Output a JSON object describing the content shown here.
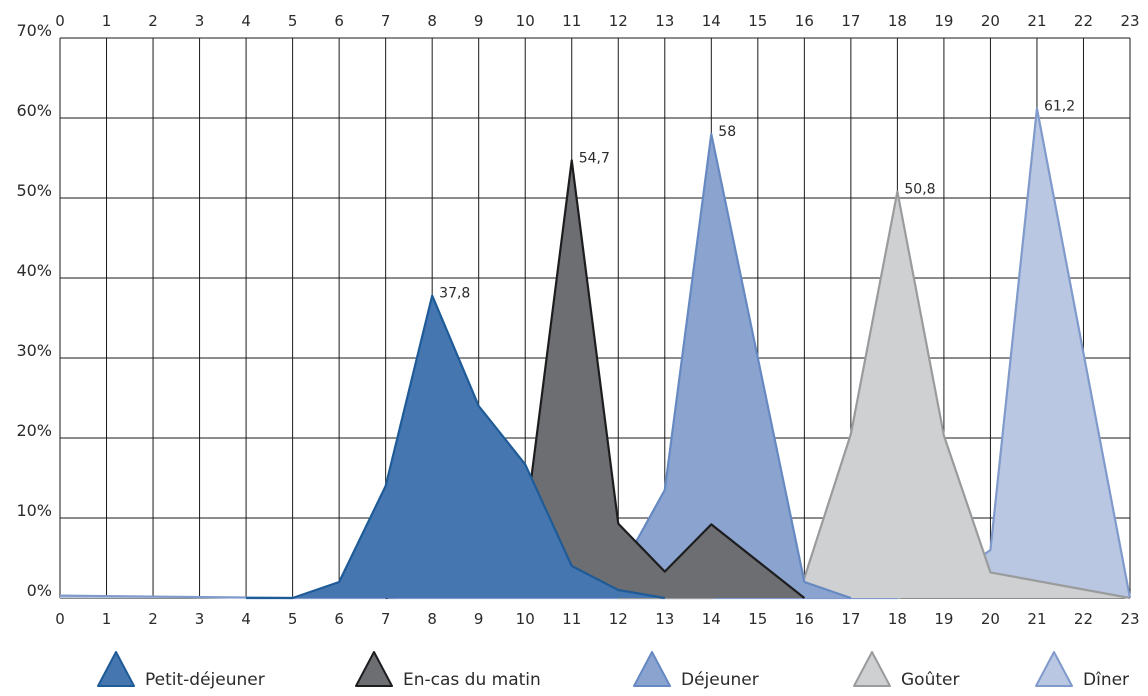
{
  "chart_data": {
    "type": "area",
    "title": "",
    "xlabel": "",
    "ylabel": "",
    "x": [
      0,
      1,
      2,
      3,
      4,
      5,
      6,
      7,
      8,
      9,
      10,
      11,
      12,
      13,
      14,
      15,
      16,
      17,
      18,
      19,
      20,
      21,
      22,
      23
    ],
    "x_tick_labels": [
      "0",
      "1",
      "2",
      "3",
      "4",
      "5",
      "6",
      "7",
      "8",
      "9",
      "10",
      "11",
      "12",
      "13",
      "14",
      "15",
      "16",
      "17",
      "18",
      "19",
      "20",
      "21",
      "22",
      "23"
    ],
    "xlim": [
      0,
      23
    ],
    "ylim": [
      0,
      70
    ],
    "y_ticks": [
      0,
      10,
      20,
      30,
      40,
      50,
      60,
      70
    ],
    "y_tick_labels": [
      "0%",
      "10%",
      "20%",
      "30%",
      "40%",
      "50%",
      "60%",
      "70%"
    ],
    "grid": true,
    "legend_position": "bottom",
    "series": [
      {
        "name": "Dîner",
        "color": "#b9c7e2",
        "stroke": "#7f9acb",
        "points": [
          [
            0,
            0.3
          ],
          [
            5,
            0
          ],
          [
            6,
            0
          ],
          [
            18,
            0
          ],
          [
            19,
            2
          ],
          [
            20,
            6
          ],
          [
            21,
            61.2
          ],
          [
            23,
            0
          ]
        ]
      },
      {
        "name": "Goûter",
        "color": "#cfd0d2",
        "stroke": "#9a9b9d",
        "points": [
          [
            12,
            0
          ],
          [
            14,
            0
          ],
          [
            16,
            2.5
          ],
          [
            17,
            20.5
          ],
          [
            18,
            50.8
          ],
          [
            19,
            20.3
          ],
          [
            20,
            3.2
          ],
          [
            23,
            0
          ]
        ]
      },
      {
        "name": "Déjeuner",
        "color": "#8aa4cf",
        "stroke": "#6689c2",
        "points": [
          [
            7,
            0
          ],
          [
            12,
            3
          ],
          [
            13,
            13.5
          ],
          [
            14,
            58
          ],
          [
            16,
            2
          ],
          [
            17,
            0
          ]
        ]
      },
      {
        "name": "En-cas du matin",
        "color": "#6d6e71",
        "stroke": "#1d1d1f",
        "points": [
          [
            7,
            0
          ],
          [
            10,
            9
          ],
          [
            11,
            54.7
          ],
          [
            12,
            9.3
          ],
          [
            13,
            3.3
          ],
          [
            14,
            9.2
          ],
          [
            16,
            0
          ]
        ]
      },
      {
        "name": "Petit-déjeuner",
        "color": "#4576b0",
        "stroke": "#1f5b98",
        "points": [
          [
            4,
            0
          ],
          [
            5,
            0
          ],
          [
            6,
            2
          ],
          [
            7,
            14
          ],
          [
            8,
            37.8
          ],
          [
            9,
            24
          ],
          [
            10,
            16.7
          ],
          [
            11,
            4
          ],
          [
            12,
            1
          ],
          [
            13,
            0
          ]
        ]
      }
    ],
    "annotations": [
      {
        "x": 8,
        "y": 37.8,
        "text": "37,8"
      },
      {
        "x": 11,
        "y": 54.7,
        "text": "54,7"
      },
      {
        "x": 14,
        "y": 58,
        "text": "58"
      },
      {
        "x": 18,
        "y": 50.8,
        "text": "50,8"
      },
      {
        "x": 21,
        "y": 61.2,
        "text": "61,2"
      }
    ],
    "legend": [
      "Petit-déjeuner",
      "En-cas du matin",
      "Déjeuner",
      "Goûter",
      "Dîner"
    ]
  }
}
